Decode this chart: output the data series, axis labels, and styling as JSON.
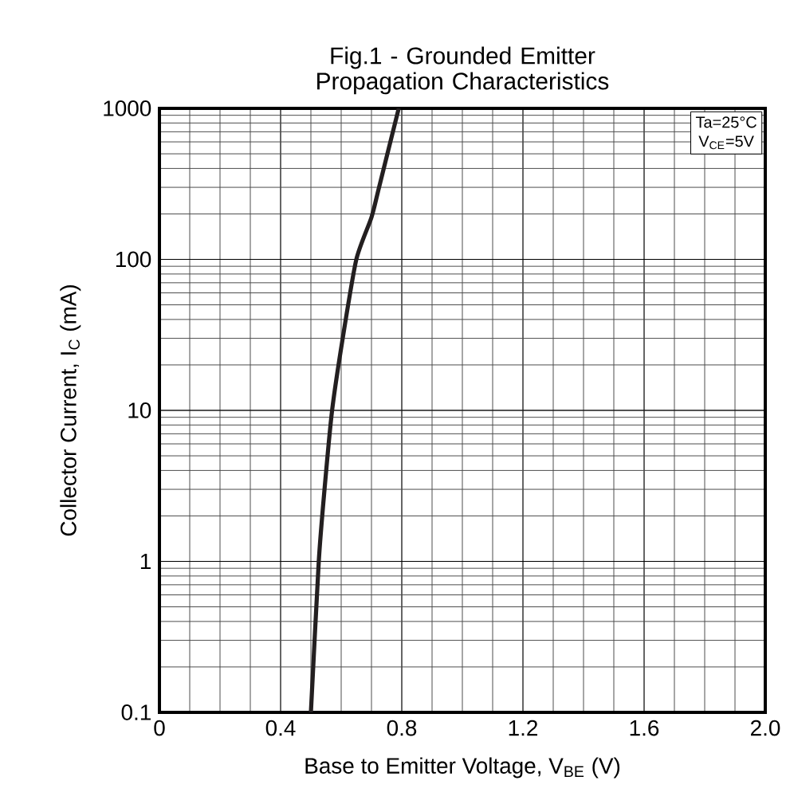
{
  "chart_data": {
    "type": "line",
    "title": "Fig.1 - Grounded Emitter Propagation Characteristics",
    "xlabel": "Base to Emitter Voltage, V$_{BE}$ (V)",
    "ylabel": "Collector Current, I$_{C}$ (mA)",
    "annotations": [
      "Ta=25°C",
      "V$_{CE}$=5V"
    ],
    "x": [
      0.5,
      0.526,
      0.545,
      0.57,
      0.605,
      0.65,
      0.7,
      0.725,
      0.79
    ],
    "series": [
      {
        "color": "#231f20",
        "values": [
          0.1,
          1,
          3,
          10,
          30,
          100,
          190,
          300,
          1000
        ]
      }
    ],
    "log": "y",
    "xlim": [
      0,
      2.0
    ],
    "ylim": [
      0.1,
      1000
    ],
    "xticks": [
      0,
      0.4,
      0.8,
      1.2,
      1.6,
      {
        "value": 2.0,
        "label": "2.0"
      }
    ],
    "yticks": [
      0.1,
      1,
      10,
      100,
      1000
    ],
    "grid": true,
    "marker": "none",
    "line_style": "solid"
  }
}
